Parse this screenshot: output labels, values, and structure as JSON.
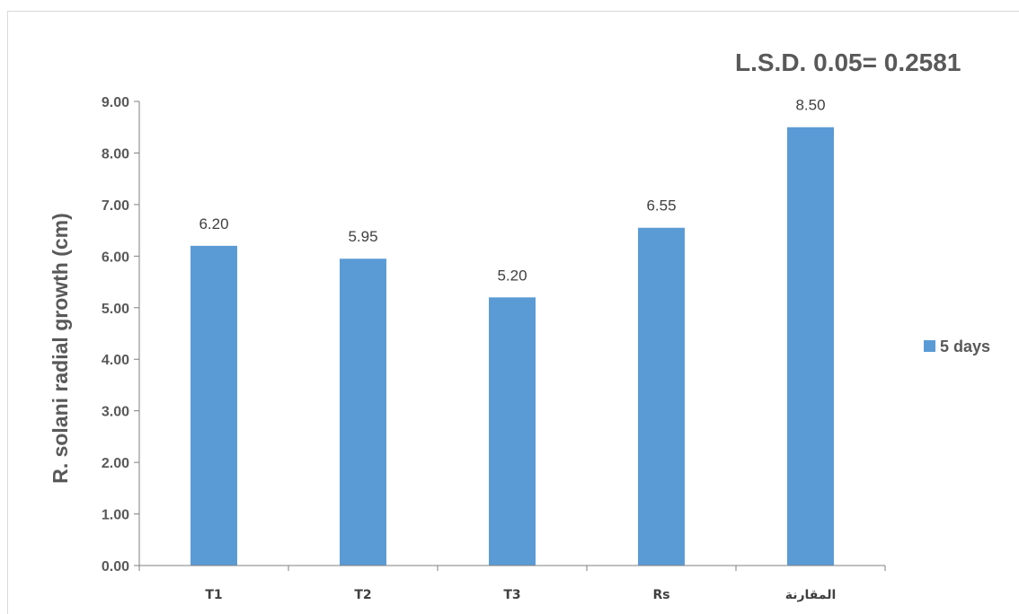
{
  "chart_data": {
    "type": "bar",
    "categories": [
      "T1",
      "T2",
      "T3",
      "Rs",
      "المقارنة"
    ],
    "series": [
      {
        "name": "5 days",
        "values": [
          6.2,
          5.95,
          5.2,
          6.55,
          8.5
        ],
        "color": "#5b9bd5"
      }
    ],
    "data_labels": [
      "6.20",
      "5.95",
      "5.20",
      "6.55",
      "8.50"
    ],
    "ylabel": "R. solani radial growth (cm)",
    "xlabel": "",
    "ylim": [
      0,
      9
    ],
    "yticks": [
      "0.00",
      "1.00",
      "2.00",
      "3.00",
      "4.00",
      "5.00",
      "6.00",
      "7.00",
      "8.00",
      "9.00"
    ],
    "annotation": "L.S.D. 0.05= 0.2581",
    "legend_position": "right",
    "grid": false
  }
}
